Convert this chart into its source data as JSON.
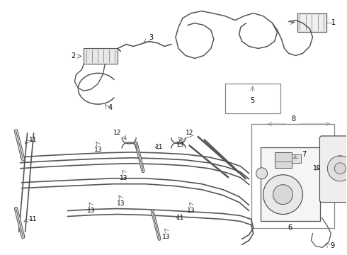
{
  "bg_color": "#ffffff",
  "line_color": "#555555",
  "label_color": "#000000",
  "gray_color": "#888888"
}
